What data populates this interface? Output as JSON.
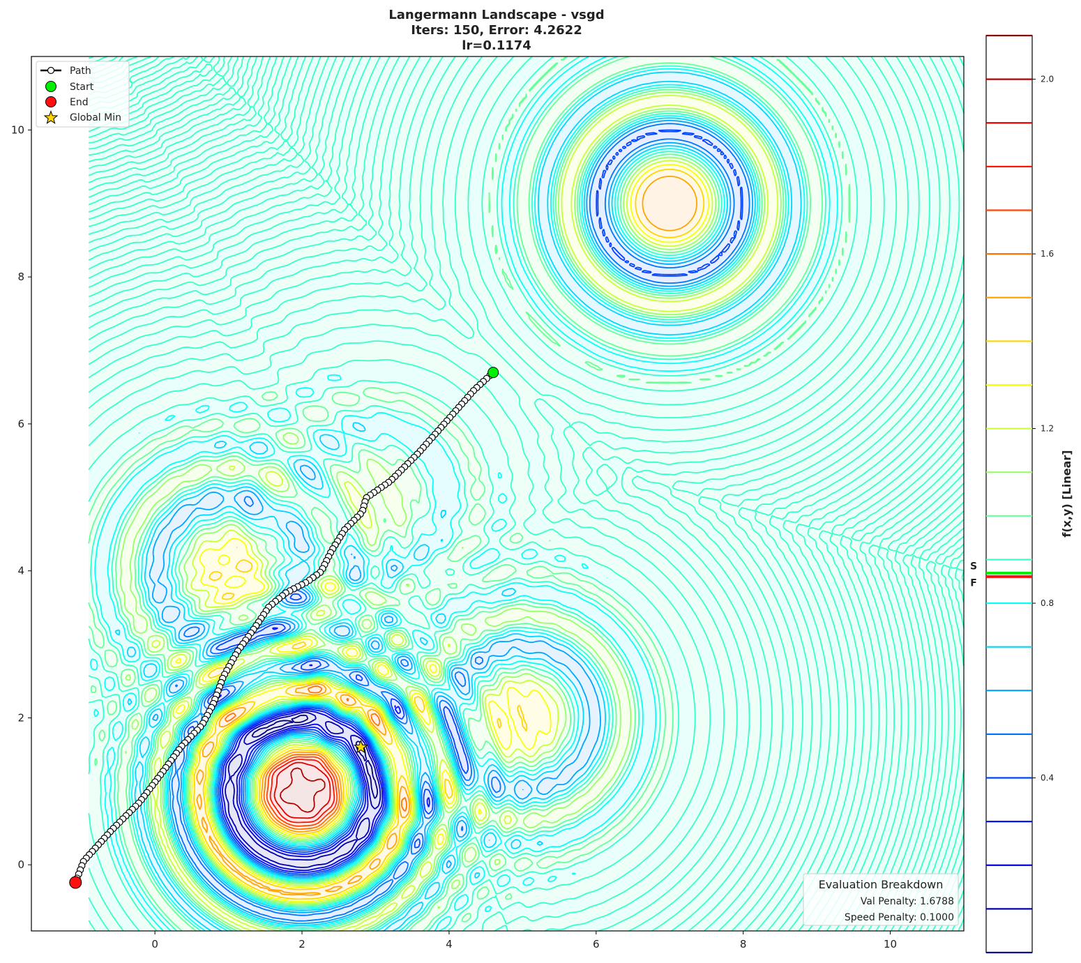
{
  "chart_data": {
    "type": "contour",
    "title_lines": [
      "Langermann Landscape - vsgd",
      "Iters: 150, Error: 4.2622",
      "lr=0.1174"
    ],
    "xlabel": "",
    "ylabel": "",
    "xlim": [
      -1.68,
      11.0
    ],
    "ylim": [
      -0.9,
      11.0
    ],
    "x_ticks": [
      0,
      2,
      4,
      6,
      8,
      10
    ],
    "y_ticks": [
      0,
      2,
      4,
      6,
      8,
      10
    ],
    "grid": false,
    "colormap": "jet",
    "surface": {
      "name": "Langermann",
      "domain_x": [
        -0.9,
        11.0
      ],
      "domain_y": [
        -0.9,
        11.0
      ],
      "centers": [
        [
          3,
          5
        ],
        [
          5,
          2
        ],
        [
          2,
          1
        ],
        [
          1,
          4
        ],
        [
          7,
          9
        ]
      ],
      "weights": [
        1,
        2,
        5,
        2,
        3
      ],
      "display_offset": 0.9,
      "display_scale": 0.23
    },
    "levels": [
      0.0,
      0.1,
      0.2,
      0.3,
      0.4,
      0.5,
      0.6,
      0.7,
      0.8,
      0.9,
      1.0,
      1.1,
      1.2,
      1.3,
      1.4,
      1.5,
      1.6,
      1.7,
      1.8,
      1.9,
      2.0,
      2.1
    ],
    "path": {
      "label": "Path",
      "iterations": 150,
      "waypoints": [
        [
          4.6,
          6.7
        ],
        [
          4.34,
          6.46
        ],
        [
          3.96,
          6.03
        ],
        [
          3.58,
          5.6
        ],
        [
          3.2,
          5.22
        ],
        [
          2.87,
          4.99
        ],
        [
          2.82,
          4.8
        ],
        [
          2.58,
          4.56
        ],
        [
          2.4,
          4.27
        ],
        [
          2.26,
          3.99
        ],
        [
          2.07,
          3.85
        ],
        [
          1.78,
          3.7
        ],
        [
          1.55,
          3.51
        ],
        [
          1.36,
          3.23
        ],
        [
          1.12,
          2.9
        ],
        [
          0.93,
          2.56
        ],
        [
          0.79,
          2.18
        ],
        [
          0.64,
          1.9
        ],
        [
          0.36,
          1.61
        ],
        [
          0.08,
          1.23
        ],
        [
          -0.21,
          0.85
        ],
        [
          -0.59,
          0.47
        ],
        [
          -0.97,
          0.05
        ],
        [
          -1.08,
          -0.24
        ]
      ]
    },
    "start": {
      "label": "Start",
      "x": 4.6,
      "y": 6.7,
      "color": "#00ee00",
      "value": 0.869,
      "colorbar_marker": "S"
    },
    "end": {
      "label": "End",
      "x": -1.08,
      "y": -0.24,
      "color": "#ff1010",
      "value": 0.861,
      "colorbar_marker": "F"
    },
    "global_min": {
      "label": "Global Min",
      "x": 2.8,
      "y": 1.6,
      "color": "#ffd700"
    },
    "legend": {
      "placement": "top-left",
      "entries": [
        "Path",
        "Start",
        "End",
        "Global Min"
      ]
    },
    "colorbar": {
      "label": "f(x,y) [Linear]",
      "range": [
        0.0,
        2.1
      ],
      "ticks": [
        0.4,
        0.8,
        1.2,
        1.6,
        2.0
      ],
      "tick_labels": [
        "0.4",
        "0.8",
        "1.2",
        "1.6",
        "2.0"
      ]
    },
    "evaluation_box": {
      "title": "Evaluation Breakdown",
      "lines": [
        "Val Penalty: 1.6788",
        "Speed Penalty: 0.1000"
      ],
      "placement": "bottom-right"
    }
  }
}
